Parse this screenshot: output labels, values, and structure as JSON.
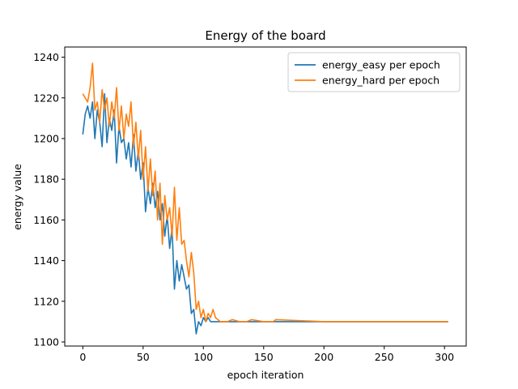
{
  "chart_data": {
    "type": "line",
    "title": "Energy of the board",
    "xlabel": "epoch iteration",
    "ylabel": "energy value",
    "xlim": [
      -15,
      318
    ],
    "ylim": [
      1098,
      1245
    ],
    "xticks": [
      0,
      50,
      100,
      150,
      200,
      250,
      300
    ],
    "yticks": [
      1100,
      1120,
      1140,
      1160,
      1180,
      1200,
      1220,
      1240
    ],
    "grid": false,
    "legend_position": "top-right",
    "series": [
      {
        "name": "energy_easy per epoch",
        "color": "#1f77b4",
        "points": [
          [
            0,
            1202
          ],
          [
            2,
            1212
          ],
          [
            4,
            1216
          ],
          [
            6,
            1210
          ],
          [
            8,
            1218
          ],
          [
            10,
            1200
          ],
          [
            12,
            1214
          ],
          [
            14,
            1208
          ],
          [
            16,
            1196
          ],
          [
            18,
            1222
          ],
          [
            20,
            1198
          ],
          [
            22,
            1210
          ],
          [
            24,
            1204
          ],
          [
            26,
            1214
          ],
          [
            28,
            1188
          ],
          [
            30,
            1206
          ],
          [
            32,
            1198
          ],
          [
            34,
            1200
          ],
          [
            36,
            1190
          ],
          [
            38,
            1198
          ],
          [
            40,
            1186
          ],
          [
            42,
            1202
          ],
          [
            44,
            1184
          ],
          [
            46,
            1194
          ],
          [
            48,
            1180
          ],
          [
            50,
            1188
          ],
          [
            52,
            1164
          ],
          [
            54,
            1176
          ],
          [
            56,
            1168
          ],
          [
            58,
            1178
          ],
          [
            60,
            1166
          ],
          [
            62,
            1174
          ],
          [
            64,
            1160
          ],
          [
            66,
            1168
          ],
          [
            68,
            1152
          ],
          [
            70,
            1162
          ],
          [
            72,
            1146
          ],
          [
            74,
            1156
          ],
          [
            76,
            1126
          ],
          [
            78,
            1140
          ],
          [
            80,
            1130
          ],
          [
            82,
            1138
          ],
          [
            84,
            1132
          ],
          [
            86,
            1126
          ],
          [
            88,
            1128
          ],
          [
            90,
            1114
          ],
          [
            92,
            1116
          ],
          [
            94,
            1104
          ],
          [
            96,
            1110
          ],
          [
            98,
            1108
          ],
          [
            100,
            1112
          ],
          [
            102,
            1110
          ],
          [
            104,
            1112
          ],
          [
            106,
            1110
          ],
          [
            110,
            1110
          ],
          [
            120,
            1110
          ],
          [
            150,
            1110
          ],
          [
            200,
            1110
          ],
          [
            250,
            1110
          ],
          [
            303,
            1110
          ]
        ]
      },
      {
        "name": "energy_hard per epoch",
        "color": "#ff7f0e",
        "points": [
          [
            0,
            1222
          ],
          [
            2,
            1220
          ],
          [
            4,
            1218
          ],
          [
            6,
            1225
          ],
          [
            8,
            1237
          ],
          [
            10,
            1214
          ],
          [
            12,
            1218
          ],
          [
            14,
            1208
          ],
          [
            16,
            1224
          ],
          [
            18,
            1214
          ],
          [
            20,
            1220
          ],
          [
            22,
            1206
          ],
          [
            24,
            1218
          ],
          [
            26,
            1210
          ],
          [
            28,
            1225
          ],
          [
            30,
            1204
          ],
          [
            32,
            1216
          ],
          [
            34,
            1200
          ],
          [
            36,
            1212
          ],
          [
            38,
            1206
          ],
          [
            40,
            1218
          ],
          [
            42,
            1196
          ],
          [
            44,
            1208
          ],
          [
            46,
            1190
          ],
          [
            48,
            1204
          ],
          [
            50,
            1180
          ],
          [
            52,
            1196
          ],
          [
            54,
            1174
          ],
          [
            56,
            1190
          ],
          [
            58,
            1172
          ],
          [
            60,
            1184
          ],
          [
            62,
            1160
          ],
          [
            64,
            1178
          ],
          [
            66,
            1148
          ],
          [
            68,
            1172
          ],
          [
            70,
            1160
          ],
          [
            72,
            1166
          ],
          [
            74,
            1152
          ],
          [
            76,
            1176
          ],
          [
            78,
            1150
          ],
          [
            80,
            1166
          ],
          [
            82,
            1148
          ],
          [
            84,
            1150
          ],
          [
            86,
            1140
          ],
          [
            88,
            1132
          ],
          [
            90,
            1144
          ],
          [
            92,
            1134
          ],
          [
            94,
            1116
          ],
          [
            96,
            1120
          ],
          [
            98,
            1112
          ],
          [
            100,
            1116
          ],
          [
            102,
            1110
          ],
          [
            104,
            1114
          ],
          [
            106,
            1112
          ],
          [
            108,
            1116
          ],
          [
            110,
            1112
          ],
          [
            114,
            1110
          ],
          [
            120,
            1110
          ],
          [
            124,
            1111
          ],
          [
            130,
            1110
          ],
          [
            136,
            1110
          ],
          [
            140,
            1111
          ],
          [
            150,
            1110
          ],
          [
            158,
            1110
          ],
          [
            160,
            1111
          ],
          [
            200,
            1110
          ],
          [
            250,
            1110
          ],
          [
            303,
            1110
          ]
        ]
      }
    ]
  }
}
